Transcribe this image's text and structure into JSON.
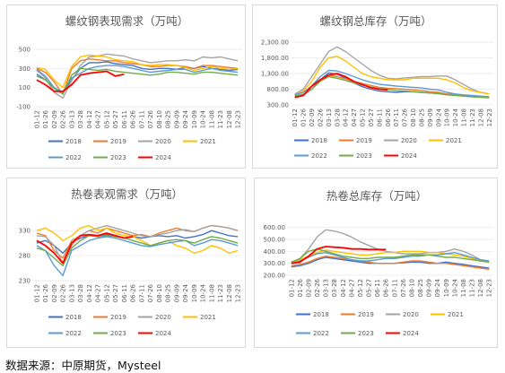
{
  "source_text": "数据来源：中原期货，Mysteel",
  "palette": {
    "2018": "#4472c4",
    "2019": "#ed7d31",
    "2020": "#a5a5a5",
    "2021": "#ffc000",
    "2022": "#5b9bd5",
    "2023": "#70ad47",
    "2024": "#ff0000"
  },
  "chart_data": [
    {
      "id": "rebar-demand",
      "type": "line",
      "title": "螺纹钢表现需求（万吨）",
      "x": [
        "01-12",
        "01-26",
        "02-09",
        "02-26",
        "03-13",
        "03-28",
        "04-12",
        "04-27",
        "05-12",
        "05-27",
        "06-11",
        "06-26",
        "07-11",
        "07-26",
        "08-10",
        "08-25",
        "09-09",
        "09-24",
        "10-09",
        "10-24",
        "11-08",
        "11-23",
        "12-08",
        "12-23"
      ],
      "y_ticks": [
        "500",
        "300",
        "100",
        "-100"
      ],
      "ylim": [
        -100,
        500
      ],
      "series": [
        {
          "name": "2018",
          "values": [
            240,
            180,
            100,
            40,
            180,
            300,
            360,
            360,
            370,
            350,
            340,
            330,
            300,
            290,
            300,
            300,
            290,
            310,
            300,
            320,
            300,
            290,
            280,
            290
          ]
        },
        {
          "name": "2019",
          "values": [
            300,
            260,
            160,
            30,
            300,
            380,
            400,
            390,
            380,
            380,
            360,
            350,
            340,
            320,
            320,
            330,
            330,
            320,
            300,
            330,
            330,
            320,
            310,
            300
          ]
        },
        {
          "name": "2020",
          "values": [
            280,
            200,
            50,
            -10,
            170,
            330,
            420,
            430,
            450,
            440,
            430,
            400,
            380,
            360,
            370,
            380,
            380,
            390,
            380,
            420,
            410,
            420,
            400,
            380
          ]
        },
        {
          "name": "2021",
          "values": [
            310,
            290,
            180,
            100,
            320,
            420,
            440,
            430,
            420,
            390,
            380,
            370,
            340,
            330,
            340,
            340,
            330,
            310,
            280,
            300,
            320,
            300,
            290,
            300
          ]
        },
        {
          "name": "2022",
          "values": [
            290,
            220,
            100,
            50,
            200,
            250,
            300,
            320,
            330,
            330,
            320,
            300,
            280,
            260,
            270,
            280,
            290,
            290,
            260,
            280,
            300,
            280,
            270,
            260
          ]
        },
        {
          "name": "2023",
          "values": [
            220,
            180,
            90,
            30,
            230,
            300,
            290,
            280,
            290,
            270,
            260,
            250,
            240,
            230,
            240,
            260,
            260,
            250,
            240,
            260,
            260,
            250,
            240,
            230
          ]
        },
        {
          "name": "2024",
          "values": [
            180,
            130,
            60,
            60,
            130,
            230,
            250,
            260,
            270,
            220,
            240,
            null,
            null,
            null,
            null,
            null,
            null,
            null,
            null,
            null,
            null,
            null,
            null,
            null
          ]
        }
      ]
    },
    {
      "id": "rebar-inventory",
      "type": "line",
      "title": "螺纹钢总库存（万吨）",
      "x": [
        "01-12",
        "01-26",
        "02-09",
        "02-26",
        "03-13",
        "03-28",
        "04-12",
        "04-27",
        "05-12",
        "05-27",
        "06-11",
        "06-26",
        "07-11",
        "07-26",
        "08-10",
        "08-25",
        "09-09",
        "09-24",
        "10-09",
        "10-24",
        "11-08",
        "11-23",
        "12-08",
        "12-23"
      ],
      "y_ticks": [
        "2,300.00",
        "1,800.00",
        "1,300.00",
        "800.00",
        "300.00"
      ],
      "ylim": [
        300,
        2300
      ],
      "series": [
        {
          "name": "2018",
          "values": [
            560,
            620,
            800,
            1100,
            1320,
            1280,
            1150,
            1000,
            880,
            800,
            740,
            720,
            700,
            720,
            720,
            700,
            680,
            660,
            640,
            620,
            580,
            560,
            550,
            540
          ]
        },
        {
          "name": "2019",
          "values": [
            620,
            700,
            900,
            1100,
            1250,
            1200,
            1130,
            1050,
            980,
            920,
            860,
            830,
            820,
            800,
            780,
            760,
            720,
            700,
            650,
            620,
            600,
            580,
            560,
            550
          ]
        },
        {
          "name": "2020",
          "values": [
            650,
            800,
            1200,
            1600,
            2000,
            2150,
            2000,
            1800,
            1600,
            1400,
            1250,
            1150,
            1130,
            1160,
            1180,
            1200,
            1200,
            1220,
            1220,
            1100,
            950,
            800,
            700,
            650
          ]
        },
        {
          "name": "2021",
          "values": [
            600,
            750,
            1050,
            1500,
            1800,
            1850,
            1700,
            1500,
            1300,
            1200,
            1150,
            1100,
            1100,
            1100,
            1150,
            1150,
            1150,
            1150,
            1100,
            1000,
            850,
            750,
            700,
            650
          ]
        },
        {
          "name": "2022",
          "values": [
            620,
            700,
            900,
            1200,
            1400,
            1380,
            1300,
            1200,
            1100,
            1020,
            960,
            930,
            900,
            880,
            860,
            840,
            800,
            780,
            700,
            650,
            620,
            600,
            580,
            560
          ]
        },
        {
          "name": "2023",
          "values": [
            580,
            640,
            800,
            1050,
            1200,
            1150,
            1080,
            1000,
            930,
            870,
            820,
            790,
            760,
            740,
            720,
            700,
            680,
            660,
            620,
            600,
            580,
            560,
            540,
            530
          ]
        },
        {
          "name": "2024",
          "values": [
            540,
            600,
            900,
            1100,
            1250,
            1300,
            1200,
            1050,
            950,
            850,
            800,
            780,
            null,
            null,
            null,
            null,
            null,
            null,
            null,
            null,
            null,
            null,
            null,
            null
          ]
        }
      ]
    },
    {
      "id": "hrc-demand",
      "type": "line",
      "title": "热卷表观需求（万吨）",
      "x": [
        "01-12",
        "01-26",
        "02-09",
        "02-26",
        "03-13",
        "03-28",
        "04-12",
        "04-27",
        "05-12",
        "05-27",
        "06-11",
        "06-26",
        "07-11",
        "07-26",
        "08-10",
        "08-25",
        "09-09",
        "09-24",
        "10-09",
        "10-24",
        "11-08",
        "11-23",
        "12-08",
        "12-23"
      ],
      "y_ticks": [
        "330",
        "280",
        "230"
      ],
      "ylim": [
        230,
        350
      ],
      "series": [
        {
          "name": "2018",
          "values": [
            305,
            310,
            300,
            285,
            305,
            315,
            320,
            318,
            322,
            320,
            315,
            318,
            315,
            318,
            320,
            318,
            320,
            315,
            318,
            322,
            330,
            325,
            320,
            318
          ]
        },
        {
          "name": "2019",
          "values": [
            325,
            320,
            290,
            275,
            310,
            320,
            330,
            325,
            335,
            330,
            325,
            320,
            322,
            318,
            325,
            330,
            335,
            330,
            328,
            335,
            340,
            338,
            335,
            330
          ]
        },
        {
          "name": "2020",
          "values": [
            320,
            318,
            300,
            265,
            300,
            320,
            330,
            335,
            340,
            335,
            330,
            325,
            320,
            318,
            322,
            325,
            330,
            332,
            328,
            335,
            340,
            338,
            335,
            330
          ]
        },
        {
          "name": "2021",
          "values": [
            330,
            335,
            325,
            310,
            320,
            335,
            340,
            330,
            335,
            325,
            320,
            318,
            310,
            300,
            305,
            310,
            300,
            295,
            285,
            290,
            300,
            295,
            285,
            290
          ]
        },
        {
          "name": "2022",
          "values": [
            300,
            290,
            260,
            240,
            290,
            300,
            310,
            315,
            318,
            315,
            310,
            305,
            300,
            298,
            302,
            305,
            308,
            310,
            300,
            305,
            312,
            310,
            305,
            300
          ]
        },
        {
          "name": "2023",
          "values": [
            295,
            290,
            275,
            260,
            295,
            310,
            320,
            318,
            320,
            318,
            315,
            310,
            305,
            300,
            305,
            310,
            312,
            310,
            305,
            312,
            318,
            315,
            310,
            305
          ]
        },
        {
          "name": "2024",
          "values": [
            310,
            300,
            285,
            265,
            305,
            320,
            322,
            320,
            325,
            320,
            315,
            318,
            null,
            null,
            null,
            null,
            null,
            null,
            null,
            null,
            null,
            null,
            null,
            null
          ]
        }
      ]
    },
    {
      "id": "hrc-inventory",
      "type": "line",
      "title": "热卷总库存（万吨）",
      "x": [
        "01-12",
        "01-26",
        "02-09",
        "02-26",
        "03-13",
        "03-28",
        "04-12",
        "04-27",
        "05-12",
        "05-27",
        "06-11",
        "06-26",
        "07-11",
        "07-26",
        "08-10",
        "08-25",
        "09-09",
        "09-24",
        "10-09",
        "10-24",
        "11-08",
        "11-23",
        "12-08",
        "12-23"
      ],
      "y_ticks": [
        "600.00",
        "500.00",
        "400.00",
        "300.00",
        "200.00"
      ],
      "ylim": [
        200,
        650
      ],
      "series": [
        {
          "name": "2018",
          "values": [
            270,
            280,
            300,
            330,
            350,
            340,
            330,
            320,
            310,
            300,
            300,
            300,
            300,
            305,
            310,
            310,
            300,
            300,
            310,
            300,
            290,
            280,
            270,
            260
          ]
        },
        {
          "name": "2019",
          "values": [
            280,
            290,
            310,
            340,
            360,
            350,
            340,
            330,
            320,
            310,
            300,
            300,
            300,
            310,
            320,
            320,
            310,
            300,
            300,
            290,
            280,
            270,
            260,
            250
          ]
        },
        {
          "name": "2020",
          "values": [
            300,
            340,
            420,
            520,
            580,
            570,
            550,
            520,
            480,
            450,
            420,
            400,
            390,
            380,
            380,
            380,
            390,
            390,
            400,
            420,
            400,
            370,
            330,
            310
          ]
        },
        {
          "name": "2021",
          "values": [
            310,
            330,
            360,
            390,
            410,
            400,
            390,
            380,
            370,
            370,
            380,
            390,
            390,
            400,
            400,
            400,
            390,
            390,
            380,
            370,
            360,
            340,
            320,
            310
          ]
        },
        {
          "name": "2022",
          "values": [
            300,
            320,
            350,
            380,
            390,
            370,
            350,
            330,
            320,
            320,
            330,
            340,
            340,
            350,
            360,
            360,
            370,
            370,
            380,
            390,
            370,
            350,
            330,
            320
          ]
        },
        {
          "name": "2023",
          "values": [
            310,
            340,
            400,
            420,
            400,
            380,
            360,
            350,
            340,
            340,
            350,
            350,
            350,
            360,
            370,
            370,
            370,
            360,
            350,
            350,
            340,
            330,
            320,
            310
          ]
        },
        {
          "name": "2024",
          "values": [
            300,
            310,
            360,
            420,
            440,
            435,
            430,
            420,
            420,
            415,
            415,
            415,
            null,
            null,
            null,
            null,
            null,
            null,
            null,
            null,
            null,
            null,
            null,
            null
          ]
        }
      ]
    }
  ]
}
